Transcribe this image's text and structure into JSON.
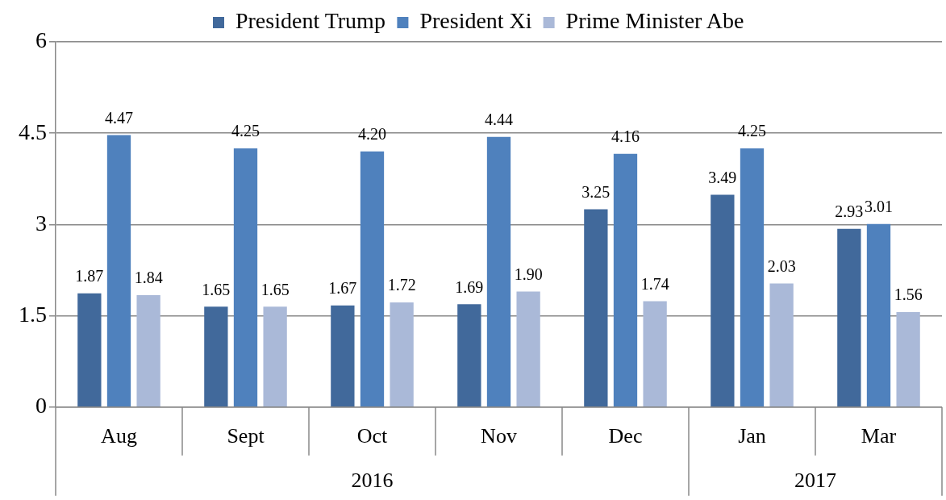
{
  "chart_data": {
    "type": "bar",
    "categories": [
      "Aug",
      "Sept",
      "Oct",
      "Nov",
      "Dec",
      "Jan",
      "Mar"
    ],
    "series": [
      {
        "name": "President Trump",
        "color": "#41699b",
        "values": [
          1.87,
          1.65,
          1.67,
          1.69,
          3.25,
          3.49,
          2.93
        ],
        "value_labels": [
          "1.87",
          "1.65",
          "1.67",
          "1.69",
          "3.25",
          "3.49",
          "2.93"
        ]
      },
      {
        "name": "President Xi",
        "color": "#4f81bd",
        "values": [
          4.47,
          4.25,
          4.2,
          4.44,
          4.16,
          4.25,
          3.01
        ],
        "value_labels": [
          "4.47",
          "4.25",
          "4.20",
          "4.44",
          "4.16",
          "4.25",
          "3.01"
        ]
      },
      {
        "name": "Prime Minister Abe",
        "color": "#aab9d8",
        "values": [
          1.84,
          1.65,
          1.72,
          1.9,
          1.74,
          2.03,
          1.56
        ],
        "value_labels": [
          "1.84",
          "1.65",
          "1.72",
          "1.90",
          "1.74",
          "2.03",
          "1.56"
        ]
      }
    ],
    "annotations": [
      "2016",
      "2017"
    ],
    "ylim": [
      0,
      6
    ],
    "yticks": [
      0,
      1.5,
      3,
      4.5,
      6
    ],
    "grid": "y",
    "legend": "top"
  }
}
